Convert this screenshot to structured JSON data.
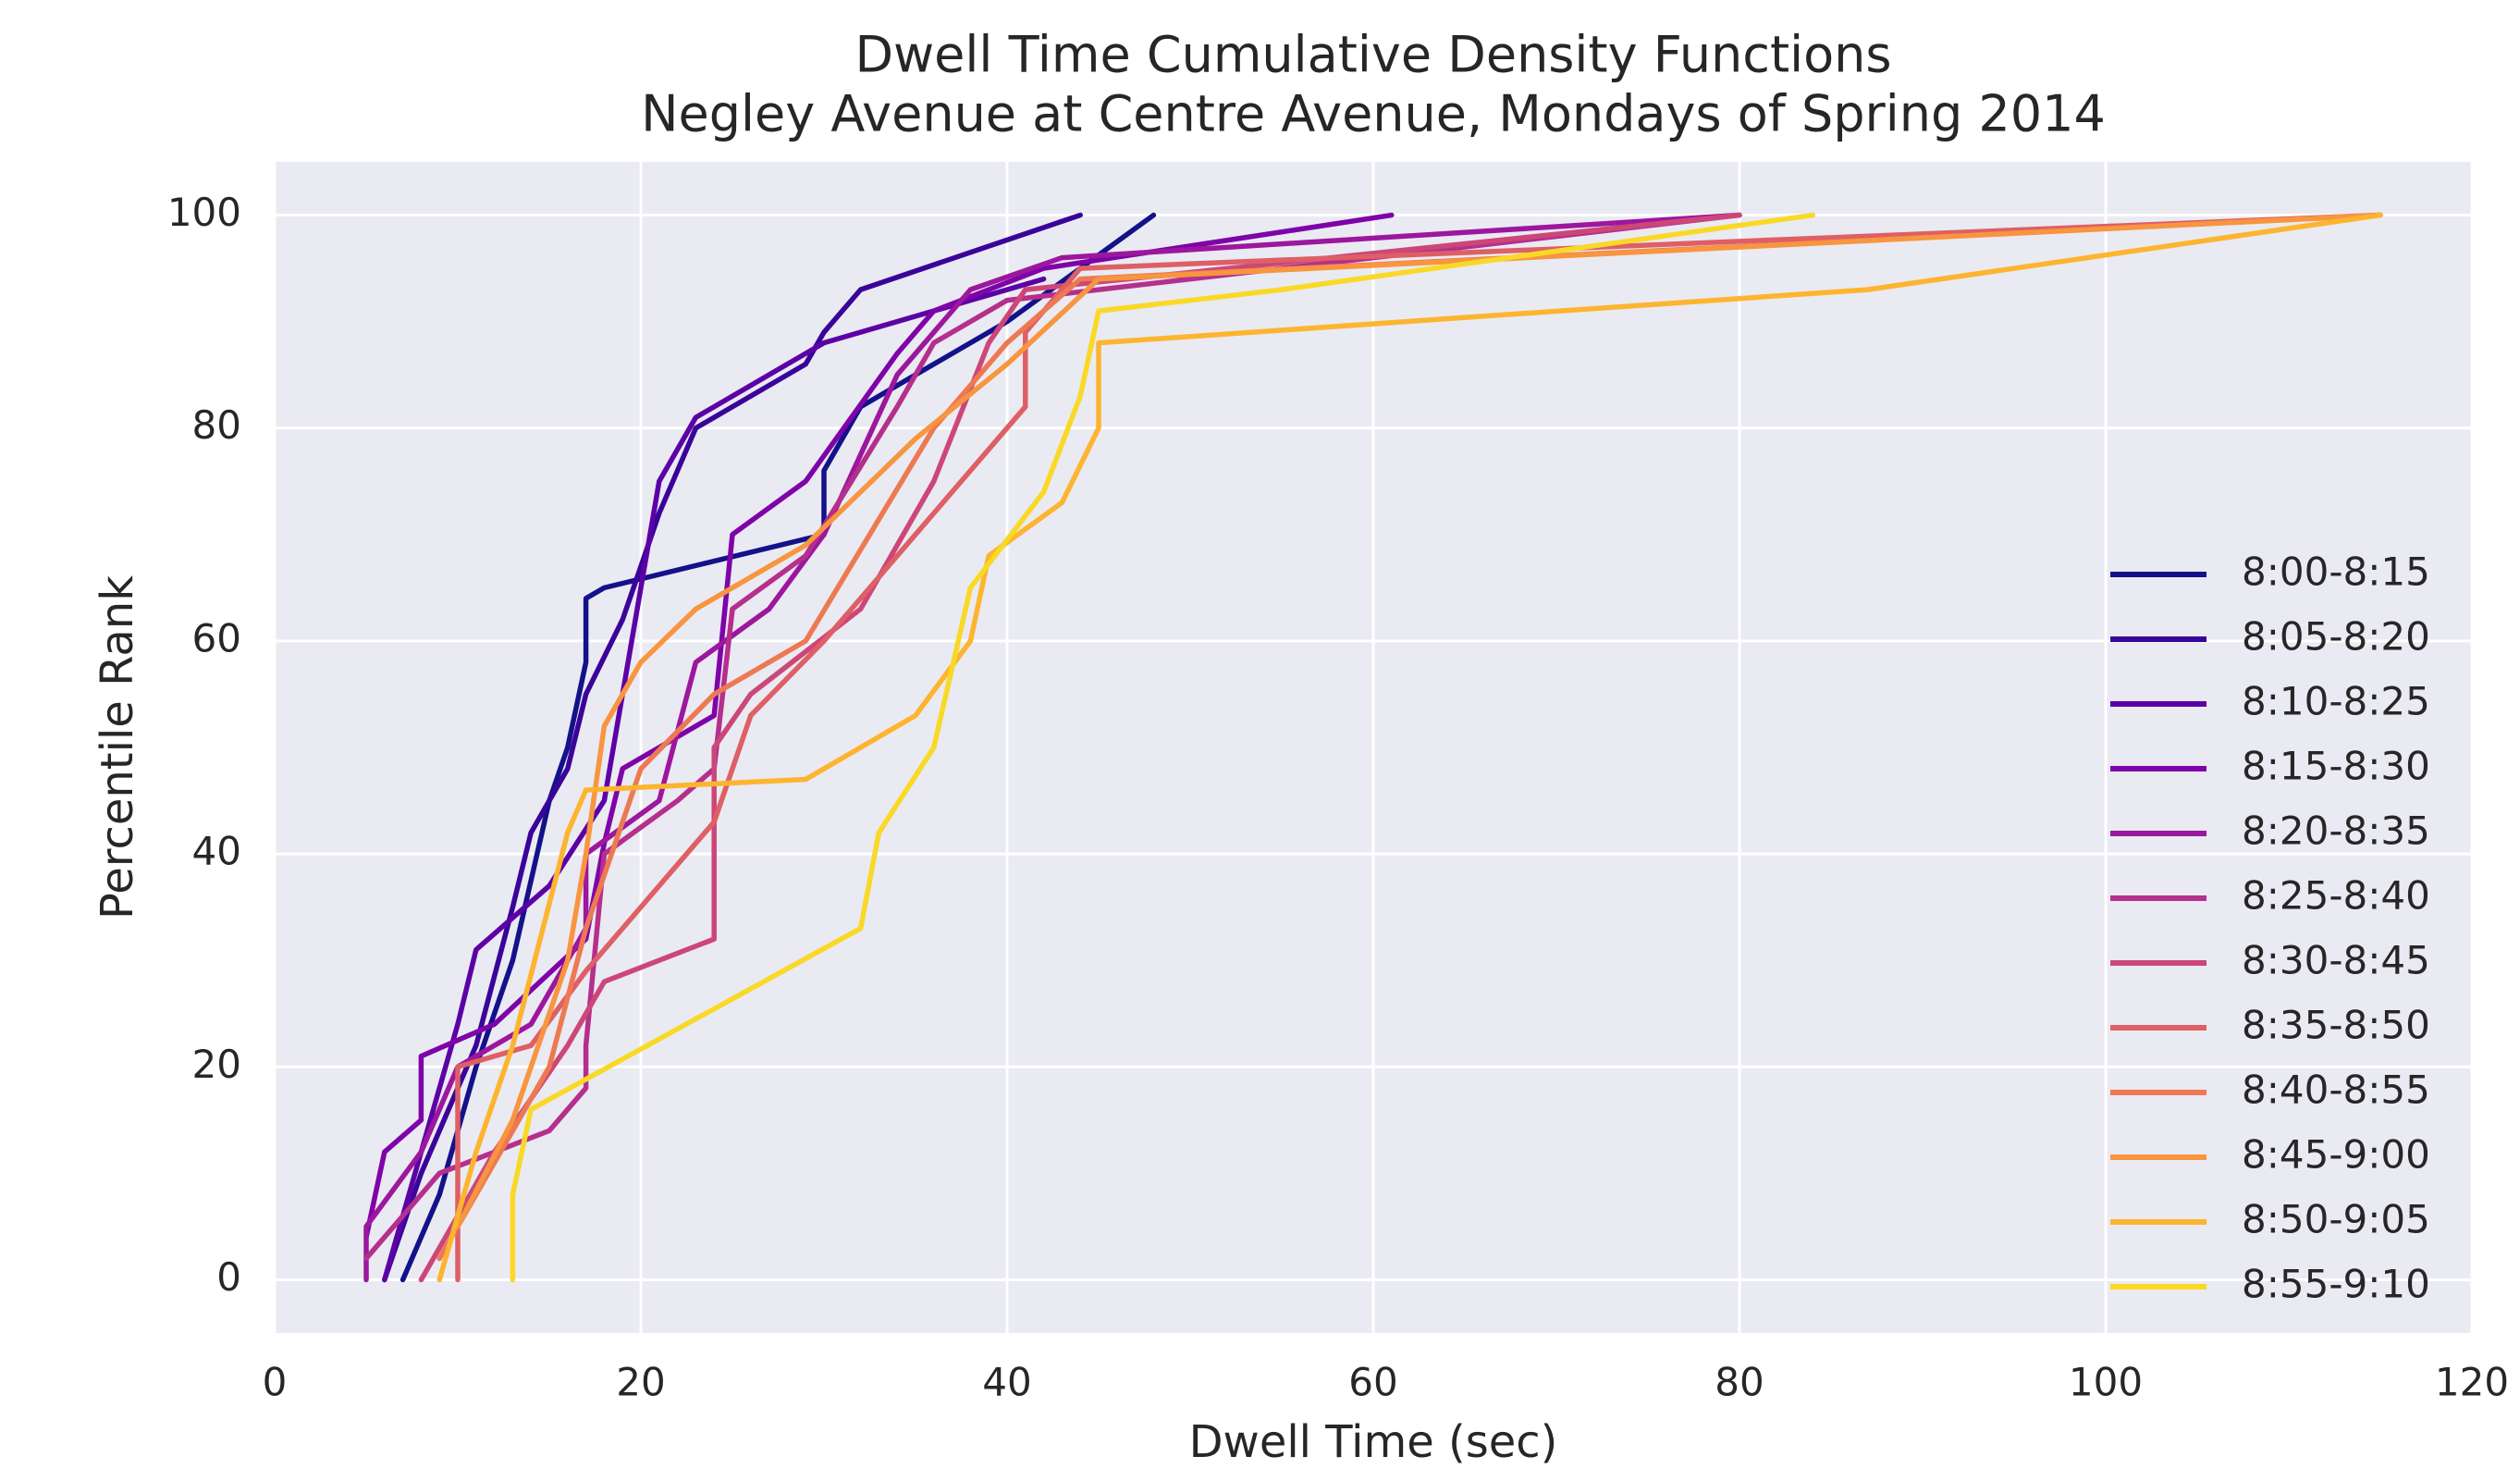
{
  "chart_data": {
    "type": "line",
    "title": "Dwell Time Cumulative Density Functions",
    "subtitle": "Negley Avenue at Centre Avenue, Mondays of Spring 2014",
    "x_label": "Dwell Time (sec)",
    "y_label": "Percentile Rank",
    "xlim": [
      0,
      120
    ],
    "ylim": [
      -5,
      105
    ],
    "xticks": [
      0,
      20,
      40,
      60,
      80,
      100,
      120
    ],
    "yticks": [
      0,
      20,
      40,
      60,
      80,
      100
    ],
    "grid": true,
    "legend": "lower right",
    "series": [
      {
        "name": "8:00-8:15",
        "color": "#13128a",
        "x": [
          7,
          9,
          11,
          13,
          15,
          16,
          17,
          17,
          18,
          30,
          30,
          32,
          40,
          48
        ],
        "values": [
          0,
          8,
          20,
          30,
          45,
          50,
          58,
          64,
          65,
          70,
          76,
          82,
          90,
          100
        ]
      },
      {
        "name": "8:05-8:20",
        "color": "#3a049a",
        "x": [
          6,
          8,
          11,
          13,
          14,
          16,
          17,
          19,
          21,
          23,
          29,
          30,
          32,
          44
        ],
        "values": [
          0,
          10,
          22,
          35,
          42,
          48,
          55,
          62,
          72,
          80,
          86,
          89,
          93,
          100
        ]
      },
      {
        "name": "8:10-8:25",
        "color": "#5c01a6",
        "x": [
          6,
          8,
          10,
          11,
          15,
          18,
          20,
          21,
          23,
          28,
          30,
          42
        ],
        "values": [
          0,
          12,
          24,
          31,
          37,
          45,
          65,
          75,
          81,
          86,
          88,
          94
        ]
      },
      {
        "name": "8:15-8:30",
        "color": "#7e03a8",
        "x": [
          5,
          6,
          8,
          8,
          12,
          17,
          18,
          19,
          22,
          24,
          25,
          29,
          34,
          36,
          42,
          61
        ],
        "values": [
          4,
          12,
          15,
          21,
          24,
          32,
          41,
          48,
          51,
          53,
          70,
          75,
          87,
          91,
          95,
          100
        ]
      },
      {
        "name": "8:20-8:35",
        "color": "#9c179e",
        "x": [
          5,
          5,
          8,
          10,
          14,
          17,
          17,
          21,
          23,
          27,
          30,
          34,
          38,
          43,
          80
        ],
        "values": [
          0,
          5,
          12,
          20,
          24,
          33,
          40,
          45,
          58,
          63,
          70,
          85,
          93,
          96,
          100
        ]
      },
      {
        "name": "8:25-8:40",
        "color": "#b52f8c",
        "x": [
          5,
          9,
          15,
          17,
          17,
          18,
          22,
          24,
          25,
          29,
          34,
          36,
          40,
          80
        ],
        "values": [
          2,
          10,
          14,
          18,
          22,
          40,
          45,
          48,
          63,
          68,
          82,
          88,
          92,
          100
        ]
      },
      {
        "name": "8:30-8:45",
        "color": "#cc4778",
        "x": [
          8,
          12,
          16,
          18,
          24,
          24,
          26,
          32,
          36,
          39,
          41,
          80
        ],
        "values": [
          0,
          12,
          22,
          28,
          32,
          50,
          55,
          63,
          75,
          88,
          93,
          100
        ]
      },
      {
        "name": "8:35-8:50",
        "color": "#de5f65",
        "x": [
          10,
          10,
          14,
          17,
          20,
          24,
          26,
          30,
          35,
          38,
          41,
          41,
          44,
          115
        ],
        "values": [
          0,
          20,
          22,
          29,
          35,
          43,
          53,
          60,
          70,
          76,
          82,
          89,
          95,
          100
        ]
      },
      {
        "name": "8:40-8:55",
        "color": "#ed7953",
        "x": [
          9,
          13,
          15,
          17,
          20,
          24,
          29,
          36,
          40,
          44,
          115
        ],
        "values": [
          2,
          14,
          20,
          33,
          48,
          55,
          60,
          80,
          88,
          94,
          100
        ]
      },
      {
        "name": "8:45-9:00",
        "color": "#f89540",
        "x": [
          10,
          13,
          16,
          17,
          18,
          20,
          23,
          29,
          35,
          40,
          45,
          115
        ],
        "values": [
          5,
          15,
          30,
          40,
          52,
          58,
          63,
          69,
          79,
          86,
          94,
          100
        ]
      },
      {
        "name": "8:50-9:05",
        "color": "#fdb42f",
        "x": [
          9,
          11,
          13,
          16,
          17,
          29,
          35,
          38,
          39,
          43,
          45,
          45,
          87,
          115
        ],
        "values": [
          0,
          12,
          22,
          42,
          46,
          47,
          53,
          60,
          68,
          73,
          80,
          88,
          93,
          100
        ]
      },
      {
        "name": "8:55-9:10",
        "color": "#f9d926",
        "x": [
          13,
          13,
          14,
          32,
          33,
          36,
          38,
          42,
          44,
          45,
          55,
          84
        ],
        "values": [
          0,
          8,
          16,
          33,
          42,
          50,
          65,
          74,
          83,
          91,
          93,
          100
        ]
      }
    ]
  }
}
